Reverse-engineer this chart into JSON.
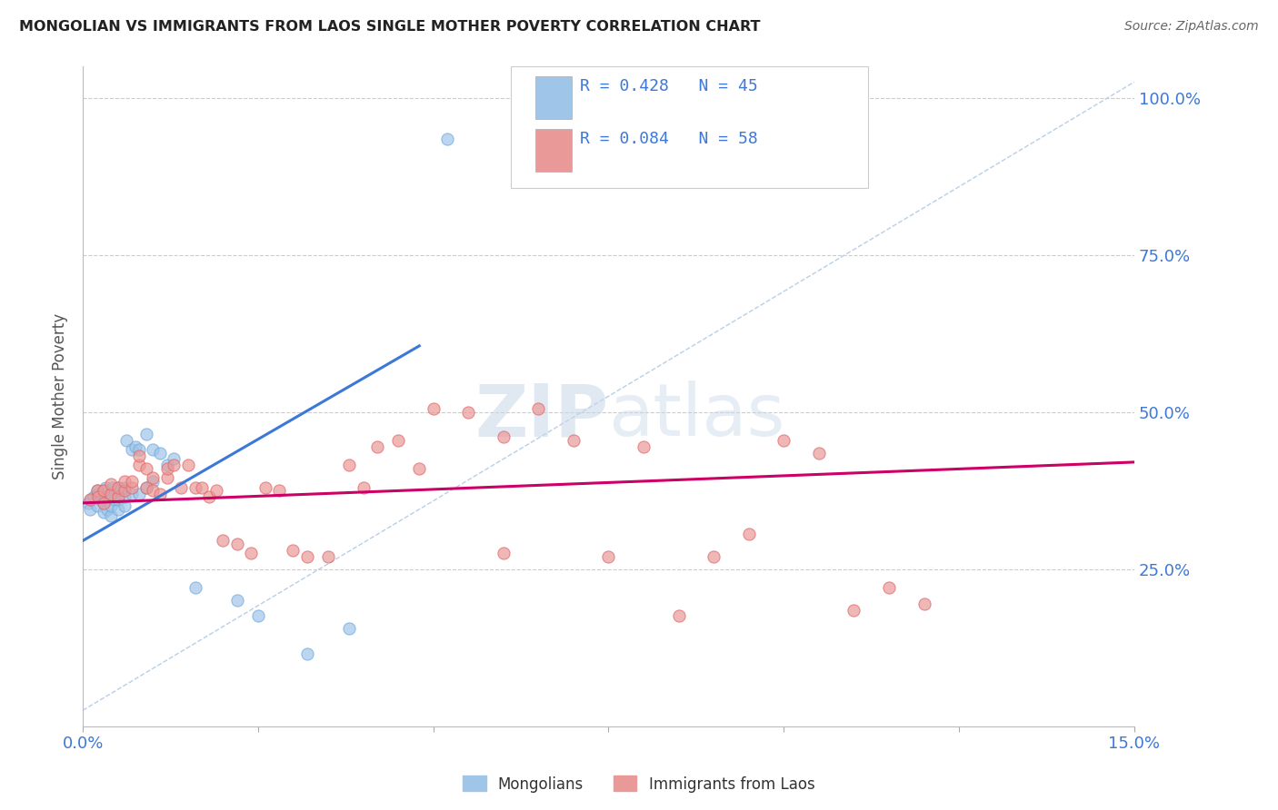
{
  "title": "MONGOLIAN VS IMMIGRANTS FROM LAOS SINGLE MOTHER POVERTY CORRELATION CHART",
  "source": "Source: ZipAtlas.com",
  "ylabel": "Single Mother Poverty",
  "yticks": [
    0.0,
    0.25,
    0.5,
    0.75,
    1.0
  ],
  "ytick_labels": [
    "",
    "25.0%",
    "50.0%",
    "75.0%",
    "100.0%"
  ],
  "xlim": [
    0.0,
    0.15
  ],
  "ylim": [
    0.0,
    1.05
  ],
  "blue_color": "#9fc5e8",
  "pink_color": "#ea9999",
  "blue_line_color": "#3c78d8",
  "pink_line_color": "#cc0066",
  "diagonal_color": "#b8cfe8",
  "background_color": "#ffffff",
  "watermark_zip": "ZIP",
  "watermark_atlas": "atlas",
  "mongolians_x": [
    0.0008,
    0.001,
    0.0012,
    0.0015,
    0.002,
    0.002,
    0.0022,
    0.0025,
    0.003,
    0.003,
    0.003,
    0.003,
    0.0032,
    0.0035,
    0.004,
    0.004,
    0.004,
    0.0042,
    0.0045,
    0.005,
    0.005,
    0.005,
    0.0052,
    0.006,
    0.006,
    0.006,
    0.0062,
    0.007,
    0.007,
    0.0075,
    0.008,
    0.008,
    0.009,
    0.009,
    0.01,
    0.01,
    0.011,
    0.012,
    0.013,
    0.016,
    0.022,
    0.025,
    0.032,
    0.038,
    0.052
  ],
  "mongolians_y": [
    0.355,
    0.345,
    0.36,
    0.365,
    0.35,
    0.375,
    0.37,
    0.36,
    0.34,
    0.355,
    0.365,
    0.375,
    0.38,
    0.345,
    0.335,
    0.35,
    0.365,
    0.38,
    0.36,
    0.345,
    0.36,
    0.38,
    0.375,
    0.35,
    0.365,
    0.38,
    0.455,
    0.37,
    0.44,
    0.445,
    0.37,
    0.44,
    0.38,
    0.465,
    0.39,
    0.44,
    0.435,
    0.415,
    0.425,
    0.22,
    0.2,
    0.175,
    0.115,
    0.155,
    0.935
  ],
  "laos_x": [
    0.001,
    0.002,
    0.0022,
    0.003,
    0.003,
    0.004,
    0.004,
    0.005,
    0.005,
    0.006,
    0.006,
    0.007,
    0.007,
    0.008,
    0.008,
    0.009,
    0.009,
    0.01,
    0.01,
    0.011,
    0.012,
    0.012,
    0.013,
    0.014,
    0.015,
    0.016,
    0.017,
    0.018,
    0.019,
    0.02,
    0.022,
    0.024,
    0.026,
    0.028,
    0.03,
    0.032,
    0.035,
    0.038,
    0.04,
    0.042,
    0.045,
    0.048,
    0.05,
    0.055,
    0.06,
    0.065,
    0.07,
    0.08,
    0.09,
    0.1,
    0.105,
    0.11,
    0.115,
    0.06,
    0.075,
    0.085,
    0.095,
    0.12
  ],
  "laos_y": [
    0.36,
    0.375,
    0.365,
    0.355,
    0.375,
    0.37,
    0.385,
    0.365,
    0.38,
    0.375,
    0.39,
    0.38,
    0.39,
    0.415,
    0.43,
    0.38,
    0.41,
    0.375,
    0.395,
    0.37,
    0.395,
    0.41,
    0.415,
    0.38,
    0.415,
    0.38,
    0.38,
    0.365,
    0.375,
    0.295,
    0.29,
    0.275,
    0.38,
    0.375,
    0.28,
    0.27,
    0.27,
    0.415,
    0.38,
    0.445,
    0.455,
    0.41,
    0.505,
    0.5,
    0.46,
    0.505,
    0.455,
    0.445,
    0.27,
    0.455,
    0.435,
    0.185,
    0.22,
    0.275,
    0.27,
    0.175,
    0.305,
    0.195
  ],
  "blue_line_x": [
    0.0,
    0.048
  ],
  "blue_line_y": [
    0.295,
    0.605
  ],
  "pink_line_x": [
    0.0,
    0.15
  ],
  "pink_line_y": [
    0.355,
    0.42
  ],
  "diag_line_x": [
    0.0,
    0.15
  ],
  "diag_line_y": [
    0.025,
    1.025
  ]
}
